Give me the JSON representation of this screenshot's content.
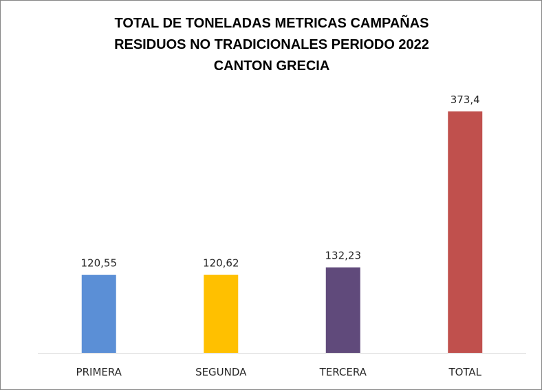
{
  "chart_data": {
    "type": "bar",
    "title_lines": [
      "TOTAL DE TONELADAS METRICAS CAMPAÑAS",
      "RESIDUOS NO TRADICIONALES PERIODO 2022",
      "CANTON GRECIA"
    ],
    "categories": [
      "PRIMERA",
      "SEGUNDA",
      "TERCERA",
      "TOTAL"
    ],
    "values": [
      120.55,
      120.62,
      132.23,
      373.4
    ],
    "value_labels": [
      "120,55",
      "120,62",
      "132,23",
      "373,4"
    ],
    "colors": [
      "#5B8FD6",
      "#FFC000",
      "#604A7B",
      "#C0504D"
    ],
    "ylim": [
      0,
      400
    ],
    "grid": false,
    "legend": "none",
    "xlabel": "",
    "ylabel": ""
  }
}
